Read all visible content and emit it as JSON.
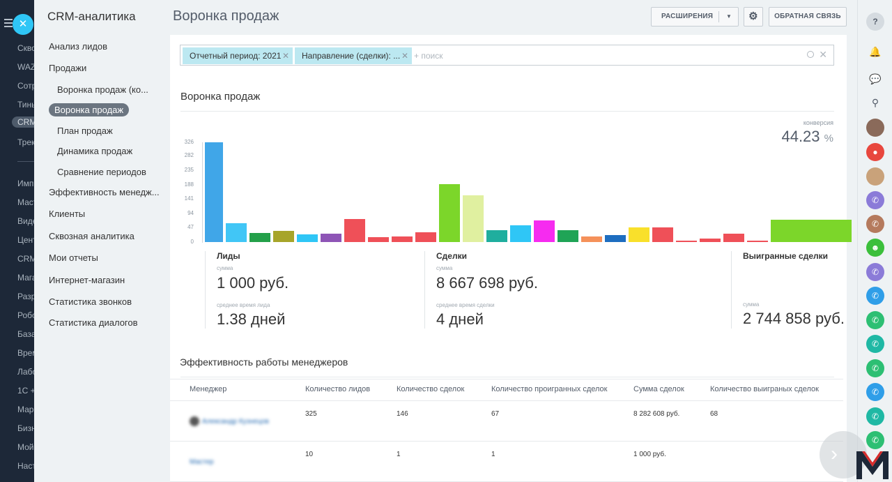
{
  "leftnav": {
    "items": [
      "Скво",
      "WAZ",
      "Сотр",
      "Тинь",
      "CRM",
      "Трек",
      "Имп",
      "Маст",
      "Виде",
      "Цент",
      "CRM",
      "Мага",
      "Разр",
      "Робо",
      "База",
      "Врем",
      "Лабо",
      "1С +",
      "Мар",
      "Бизн",
      "Мой",
      "Наст"
    ]
  },
  "submenu": {
    "title": "CRM-аналитика",
    "items": [
      "Анализ лидов",
      "Продажи",
      "Воронка продаж (ко...",
      "Воронка продаж",
      "План продаж",
      "Динамика продаж",
      "Сравнение периодов",
      "Эффективность менедж...",
      "Клиенты",
      "Сквозная аналитика",
      "Мои отчеты",
      "Интернет-магазин",
      "Статистика звонков",
      "Статистика диалогов"
    ]
  },
  "header": {
    "title": "Воронка продаж",
    "extensions_label": "РАСШИРЕНИЯ",
    "feedback_label": "ОБРАТНАЯ СВЯЗЬ"
  },
  "filter": {
    "chips": [
      "Отчетный период: 2021",
      "Направление (сделки): ..."
    ],
    "search_placeholder": "+ поиск"
  },
  "funnel": {
    "title": "Воронка продаж",
    "conversion_label": "конверсия",
    "conversion_value": "44.23",
    "conversion_unit": "%"
  },
  "chart_data": {
    "type": "bar",
    "y_ticks": [
      "326",
      "282",
      "235",
      "188",
      "141",
      "94",
      "47",
      "0"
    ],
    "ylim": [
      0,
      326
    ],
    "values": [
      326,
      61,
      29,
      37,
      25,
      27,
      76,
      17,
      19,
      33,
      189,
      153,
      39,
      54,
      70,
      39,
      19,
      23,
      47,
      47,
      5,
      12,
      28,
      5,
      74
    ],
    "colors": [
      "#40a6e8",
      "#41c6f6",
      "#24a04a",
      "#a7a52a",
      "#2fc6f6",
      "#8e55b6",
      "#ef5058",
      "#ef5058",
      "#ef5058",
      "#ef5058",
      "#7cd62a",
      "#e0f0a0",
      "#1fae9e",
      "#2fc6f6",
      "#f62bf0",
      "#1fa456",
      "#f5915a",
      "#1e6ec0",
      "#f9e02b",
      "#ef5058",
      "#ef5058",
      "#ef5058",
      "#ef5058",
      "#ef5058",
      "#7cd62a"
    ]
  },
  "stats": {
    "leads": {
      "title": "Лиды",
      "sum_label": "сумма",
      "sum_value": "1 000 руб.",
      "time_label": "среднее время лида",
      "time_value": "1.38 дней"
    },
    "deals": {
      "title": "Сделки",
      "sum_label": "сумма",
      "sum_value": "8 667 698 руб.",
      "time_label": "среднее время сделки",
      "time_value": "4 дней"
    },
    "won": {
      "title": "Выигранные сделки",
      "sum_label": "сумма",
      "sum_value": "2 744 858 руб."
    }
  },
  "managers": {
    "title": "Эффективность работы менеджеров",
    "columns": [
      "Менеджер",
      "Количество лидов",
      "Количество сделок",
      "Количество проигранных сделок",
      "Сумма сделок",
      "Количество выиграных сделок"
    ],
    "rows": [
      {
        "manager": "Александр Кузнецов",
        "leads": "325",
        "deals": "146",
        "lost": "67",
        "sum": "8 282 608 руб.",
        "won": "68"
      },
      {
        "manager": "Мастер",
        "leads": "10",
        "deals": "1",
        "lost": "1",
        "sum": "1 000 руб.",
        "won": ""
      }
    ]
  },
  "rightbar": {
    "help_icon": "?",
    "colors": {
      "avatar_red": "#e8473e",
      "call_purple": "#8b7bd8",
      "call_brown": "#b57a5d",
      "bot_green": "#3bbf3b",
      "call_blue": "#2f9ee8",
      "call_green": "#2dbf73",
      "call_teal": "#1fb8a4"
    }
  }
}
